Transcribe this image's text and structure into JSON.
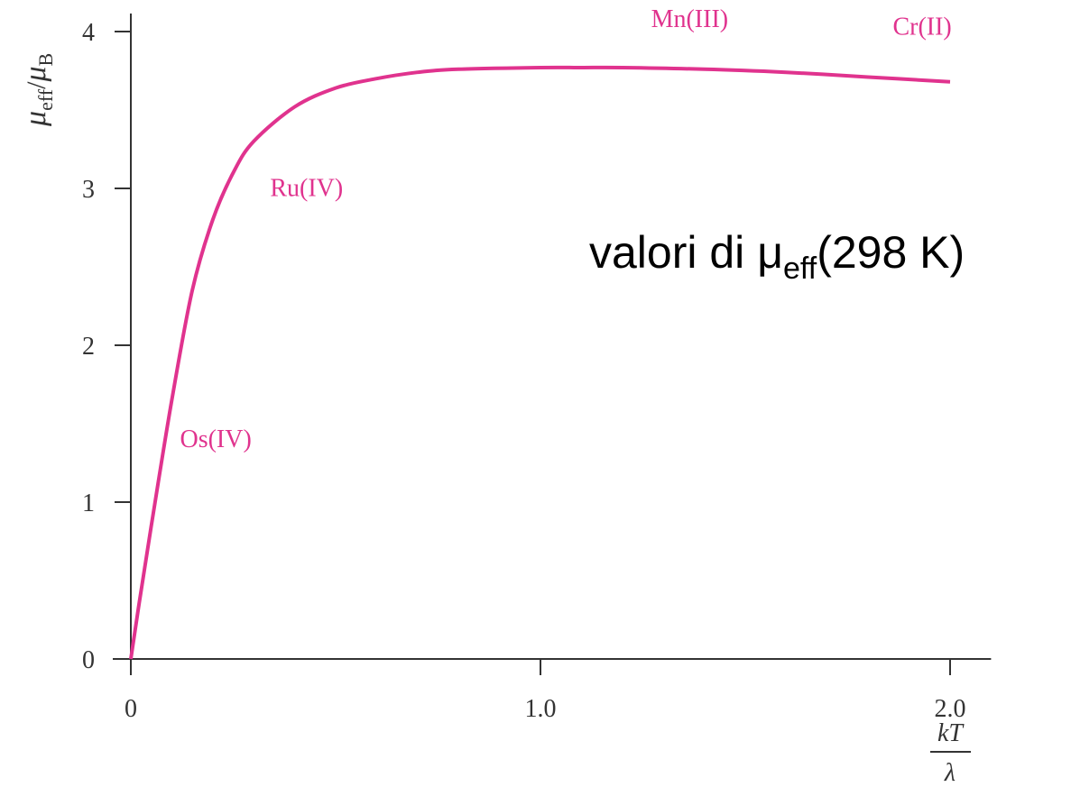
{
  "chart_data": {
    "type": "line",
    "x": [
      0,
      0.02,
      0.05,
      0.1,
      0.15,
      0.2,
      0.25,
      0.3,
      0.4,
      0.5,
      0.6,
      0.7,
      0.8,
      1.0,
      1.1,
      1.2,
      1.4,
      1.6,
      1.8,
      2.0
    ],
    "series": [
      {
        "values": [
          0,
          0.35,
          0.85,
          1.65,
          2.35,
          2.8,
          3.1,
          3.3,
          3.52,
          3.64,
          3.7,
          3.74,
          3.76,
          3.77,
          3.77,
          3.77,
          3.76,
          3.74,
          3.71,
          3.68
        ]
      }
    ],
    "color": "#e0338e",
    "xlim": [
      0,
      2.1
    ],
    "ylim": [
      0,
      4
    ],
    "xticks": [
      0,
      1.0,
      2.0
    ],
    "xtick_labels": [
      "0",
      "1.0",
      "2.0"
    ],
    "yticks": [
      0,
      1,
      2,
      3,
      4
    ],
    "ytick_labels": [
      "0",
      "1",
      "2",
      "3",
      "4"
    ],
    "ylabel": {
      "mu": "μ",
      "eff": "eff",
      "slash": "/",
      "mu2": "μ",
      "B": "B"
    },
    "xlabel": {
      "numerator": "kT",
      "denominator": "λ"
    },
    "point_labels": [
      {
        "text": "Os(IV)",
        "x": 0.12,
        "y": 1.35
      },
      {
        "text": "Ru(IV)",
        "x": 0.34,
        "y": 2.95
      },
      {
        "text": "Mn(III)",
        "x": 1.27,
        "y": 4.03
      },
      {
        "text": "Cr(II)",
        "x": 1.86,
        "y": 3.98
      }
    ],
    "annotation": {
      "prefix": "valori di ",
      "mu": "μ",
      "sub": "eff",
      "suffix": "(298 K)"
    }
  }
}
